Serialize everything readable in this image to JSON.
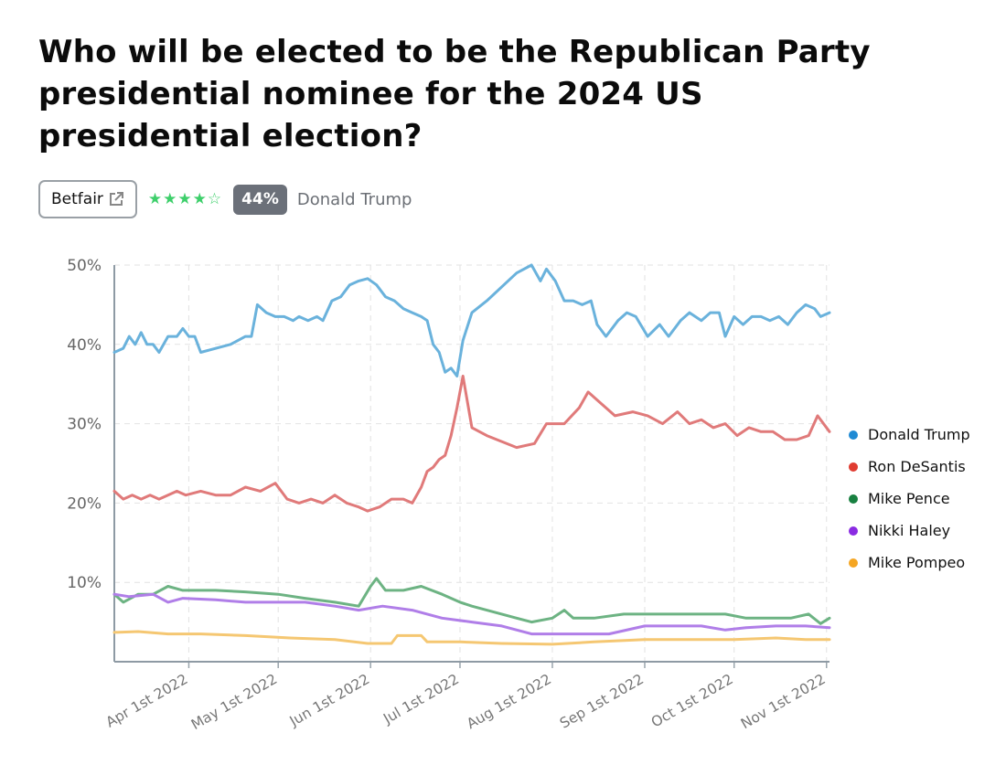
{
  "question": "Who will be elected to be the Republican Party presidential nominee for the 2024 US presidential election?",
  "source": {
    "label": "Betfair",
    "icon": "external-link-icon"
  },
  "rating": {
    "stars": 4,
    "max": 5
  },
  "probability_badge": "44%",
  "leading_outcome": "Donald Trump",
  "chart_data": {
    "type": "line",
    "ylim": [
      0,
      50
    ],
    "ytick_labels": [
      "10%",
      "20%",
      "30%",
      "40%",
      "50%"
    ],
    "ytick_values": [
      10,
      20,
      30,
      40,
      50
    ],
    "xlim": [
      "2022-03-07",
      "2022-11-02"
    ],
    "xtick_labels": [
      "Apr 1st 2022",
      "May 1st 2022",
      "Jun 1st 2022",
      "Jul 1st 2022",
      "Aug 1st 2022",
      "Sep 1st 2022",
      "Oct 1st 2022",
      "Nov 1st 2022"
    ],
    "xtick_dates": [
      "2022-04-01",
      "2022-05-01",
      "2022-06-01",
      "2022-07-01",
      "2022-08-01",
      "2022-09-01",
      "2022-10-01",
      "2022-11-01"
    ],
    "grid": true,
    "legend_position": "right",
    "series": [
      {
        "name": "Donald Trump",
        "legend_color": "#1f8ad4",
        "line_color": "#6ab2dc",
        "points": [
          [
            "2022-03-07",
            39.0
          ],
          [
            "2022-03-10",
            39.5
          ],
          [
            "2022-03-12",
            41.0
          ],
          [
            "2022-03-14",
            40.0
          ],
          [
            "2022-03-16",
            41.5
          ],
          [
            "2022-03-18",
            40.0
          ],
          [
            "2022-03-20",
            40.0
          ],
          [
            "2022-03-22",
            39.0
          ],
          [
            "2022-03-25",
            41.0
          ],
          [
            "2022-03-28",
            41.0
          ],
          [
            "2022-03-30",
            42.0
          ],
          [
            "2022-04-01",
            41.0
          ],
          [
            "2022-04-03",
            41.0
          ],
          [
            "2022-04-05",
            39.0
          ],
          [
            "2022-04-15",
            40.0
          ],
          [
            "2022-04-20",
            41.0
          ],
          [
            "2022-04-22",
            41.0
          ],
          [
            "2022-04-24",
            45.0
          ],
          [
            "2022-04-27",
            44.0
          ],
          [
            "2022-04-30",
            43.5
          ],
          [
            "2022-05-03",
            43.5
          ],
          [
            "2022-05-06",
            43.0
          ],
          [
            "2022-05-08",
            43.5
          ],
          [
            "2022-05-11",
            43.0
          ],
          [
            "2022-05-14",
            43.5
          ],
          [
            "2022-05-16",
            43.0
          ],
          [
            "2022-05-19",
            45.5
          ],
          [
            "2022-05-22",
            46.0
          ],
          [
            "2022-05-25",
            47.5
          ],
          [
            "2022-05-28",
            48.0
          ],
          [
            "2022-05-31",
            48.3
          ],
          [
            "2022-06-03",
            47.5
          ],
          [
            "2022-06-06",
            46.0
          ],
          [
            "2022-06-09",
            45.5
          ],
          [
            "2022-06-12",
            44.5
          ],
          [
            "2022-06-15",
            44.0
          ],
          [
            "2022-06-18",
            43.5
          ],
          [
            "2022-06-20",
            43.0
          ],
          [
            "2022-06-22",
            40.0
          ],
          [
            "2022-06-24",
            39.0
          ],
          [
            "2022-06-26",
            36.5
          ],
          [
            "2022-06-28",
            37.0
          ],
          [
            "2022-06-30",
            36.0
          ],
          [
            "2022-07-02",
            40.5
          ],
          [
            "2022-07-05",
            44.0
          ],
          [
            "2022-07-10",
            45.5
          ],
          [
            "2022-07-20",
            49.0
          ],
          [
            "2022-07-25",
            50.0
          ],
          [
            "2022-07-28",
            48.0
          ],
          [
            "2022-07-30",
            49.5
          ],
          [
            "2022-08-02",
            48.0
          ],
          [
            "2022-08-05",
            45.5
          ],
          [
            "2022-08-08",
            45.5
          ],
          [
            "2022-08-11",
            45.0
          ],
          [
            "2022-08-14",
            45.5
          ],
          [
            "2022-08-16",
            42.5
          ],
          [
            "2022-08-19",
            41.0
          ],
          [
            "2022-08-23",
            43.0
          ],
          [
            "2022-08-26",
            44.0
          ],
          [
            "2022-08-29",
            43.5
          ],
          [
            "2022-09-02",
            41.0
          ],
          [
            "2022-09-06",
            42.5
          ],
          [
            "2022-09-09",
            41.0
          ],
          [
            "2022-09-13",
            43.0
          ],
          [
            "2022-09-16",
            44.0
          ],
          [
            "2022-09-20",
            43.0
          ],
          [
            "2022-09-23",
            44.0
          ],
          [
            "2022-09-26",
            44.0
          ],
          [
            "2022-09-28",
            41.0
          ],
          [
            "2022-10-01",
            43.5
          ],
          [
            "2022-10-04",
            42.5
          ],
          [
            "2022-10-07",
            43.5
          ],
          [
            "2022-10-10",
            43.5
          ],
          [
            "2022-10-13",
            43.0
          ],
          [
            "2022-10-16",
            43.5
          ],
          [
            "2022-10-19",
            42.5
          ],
          [
            "2022-10-22",
            44.0
          ],
          [
            "2022-10-25",
            45.0
          ],
          [
            "2022-10-28",
            44.5
          ],
          [
            "2022-10-30",
            43.5
          ],
          [
            "2022-11-02",
            44.0
          ]
        ]
      },
      {
        "name": "Ron DeSantis",
        "legend_color": "#e03c31",
        "line_color": "#e07a7a",
        "points": [
          [
            "2022-03-07",
            21.5
          ],
          [
            "2022-03-10",
            20.5
          ],
          [
            "2022-03-13",
            21.0
          ],
          [
            "2022-03-16",
            20.5
          ],
          [
            "2022-03-19",
            21.0
          ],
          [
            "2022-03-22",
            20.5
          ],
          [
            "2022-03-25",
            21.0
          ],
          [
            "2022-03-28",
            21.5
          ],
          [
            "2022-03-31",
            21.0
          ],
          [
            "2022-04-05",
            21.5
          ],
          [
            "2022-04-10",
            21.0
          ],
          [
            "2022-04-15",
            21.0
          ],
          [
            "2022-04-20",
            22.0
          ],
          [
            "2022-04-25",
            21.5
          ],
          [
            "2022-04-30",
            22.5
          ],
          [
            "2022-05-04",
            20.5
          ],
          [
            "2022-05-08",
            20.0
          ],
          [
            "2022-05-12",
            20.5
          ],
          [
            "2022-05-16",
            20.0
          ],
          [
            "2022-05-20",
            21.0
          ],
          [
            "2022-05-24",
            20.0
          ],
          [
            "2022-05-28",
            19.5
          ],
          [
            "2022-05-31",
            19.0
          ],
          [
            "2022-06-04",
            19.5
          ],
          [
            "2022-06-08",
            20.5
          ],
          [
            "2022-06-12",
            20.5
          ],
          [
            "2022-06-15",
            20.0
          ],
          [
            "2022-06-18",
            22.0
          ],
          [
            "2022-06-20",
            24.0
          ],
          [
            "2022-06-22",
            24.5
          ],
          [
            "2022-06-24",
            25.5
          ],
          [
            "2022-06-26",
            26.0
          ],
          [
            "2022-06-28",
            28.5
          ],
          [
            "2022-06-30",
            32.0
          ],
          [
            "2022-07-02",
            36.0
          ],
          [
            "2022-07-05",
            29.5
          ],
          [
            "2022-07-10",
            28.5
          ],
          [
            "2022-07-20",
            27.0
          ],
          [
            "2022-07-26",
            27.5
          ],
          [
            "2022-07-30",
            30.0
          ],
          [
            "2022-08-05",
            30.0
          ],
          [
            "2022-08-10",
            32.0
          ],
          [
            "2022-08-13",
            34.0
          ],
          [
            "2022-08-16",
            33.0
          ],
          [
            "2022-08-22",
            31.0
          ],
          [
            "2022-08-28",
            31.5
          ],
          [
            "2022-09-02",
            31.0
          ],
          [
            "2022-09-07",
            30.0
          ],
          [
            "2022-09-12",
            31.5
          ],
          [
            "2022-09-16",
            30.0
          ],
          [
            "2022-09-20",
            30.5
          ],
          [
            "2022-09-24",
            29.5
          ],
          [
            "2022-09-28",
            30.0
          ],
          [
            "2022-10-02",
            28.5
          ],
          [
            "2022-10-06",
            29.5
          ],
          [
            "2022-10-10",
            29.0
          ],
          [
            "2022-10-14",
            29.0
          ],
          [
            "2022-10-18",
            28.0
          ],
          [
            "2022-10-22",
            28.0
          ],
          [
            "2022-10-26",
            28.5
          ],
          [
            "2022-10-29",
            31.0
          ],
          [
            "2022-11-02",
            29.0
          ]
        ]
      },
      {
        "name": "Mike Pence",
        "legend_color": "#188040",
        "line_color": "#6db383",
        "points": [
          [
            "2022-03-07",
            8.5
          ],
          [
            "2022-03-10",
            7.5
          ],
          [
            "2022-03-15",
            8.5
          ],
          [
            "2022-03-20",
            8.5
          ],
          [
            "2022-03-25",
            9.5
          ],
          [
            "2022-03-30",
            9.0
          ],
          [
            "2022-04-10",
            9.0
          ],
          [
            "2022-04-20",
            8.8
          ],
          [
            "2022-05-01",
            8.5
          ],
          [
            "2022-05-10",
            8.0
          ],
          [
            "2022-05-20",
            7.5
          ],
          [
            "2022-05-28",
            7.0
          ],
          [
            "2022-06-01",
            9.5
          ],
          [
            "2022-06-03",
            10.5
          ],
          [
            "2022-06-06",
            9.0
          ],
          [
            "2022-06-12",
            9.0
          ],
          [
            "2022-06-18",
            9.5
          ],
          [
            "2022-06-25",
            8.5
          ],
          [
            "2022-07-01",
            7.5
          ],
          [
            "2022-07-05",
            7.0
          ],
          [
            "2022-07-10",
            6.5
          ],
          [
            "2022-07-15",
            6.0
          ],
          [
            "2022-07-20",
            5.5
          ],
          [
            "2022-07-25",
            5.0
          ],
          [
            "2022-08-01",
            5.5
          ],
          [
            "2022-08-05",
            6.5
          ],
          [
            "2022-08-08",
            5.5
          ],
          [
            "2022-08-15",
            5.5
          ],
          [
            "2022-08-25",
            6.0
          ],
          [
            "2022-09-01",
            6.0
          ],
          [
            "2022-09-10",
            6.0
          ],
          [
            "2022-09-20",
            6.0
          ],
          [
            "2022-09-28",
            6.0
          ],
          [
            "2022-10-05",
            5.5
          ],
          [
            "2022-10-12",
            5.5
          ],
          [
            "2022-10-20",
            5.5
          ],
          [
            "2022-10-26",
            6.0
          ],
          [
            "2022-10-30",
            4.8
          ],
          [
            "2022-11-02",
            5.5
          ]
        ]
      },
      {
        "name": "Nikki Haley",
        "legend_color": "#8a2be2",
        "line_color": "#b07ee8",
        "points": [
          [
            "2022-03-07",
            8.5
          ],
          [
            "2022-03-12",
            8.2
          ],
          [
            "2022-03-20",
            8.5
          ],
          [
            "2022-03-25",
            7.5
          ],
          [
            "2022-03-30",
            8.0
          ],
          [
            "2022-04-10",
            7.8
          ],
          [
            "2022-04-20",
            7.5
          ],
          [
            "2022-04-30",
            7.5
          ],
          [
            "2022-05-10",
            7.5
          ],
          [
            "2022-05-20",
            7.0
          ],
          [
            "2022-05-28",
            6.5
          ],
          [
            "2022-06-05",
            7.0
          ],
          [
            "2022-06-15",
            6.5
          ],
          [
            "2022-06-25",
            5.5
          ],
          [
            "2022-07-05",
            5.0
          ],
          [
            "2022-07-15",
            4.5
          ],
          [
            "2022-07-25",
            3.5
          ],
          [
            "2022-08-01",
            3.5
          ],
          [
            "2022-08-10",
            3.5
          ],
          [
            "2022-08-20",
            3.5
          ],
          [
            "2022-09-01",
            4.5
          ],
          [
            "2022-09-10",
            4.5
          ],
          [
            "2022-09-20",
            4.5
          ],
          [
            "2022-09-28",
            4.0
          ],
          [
            "2022-10-05",
            4.3
          ],
          [
            "2022-10-15",
            4.5
          ],
          [
            "2022-10-25",
            4.5
          ],
          [
            "2022-11-02",
            4.3
          ]
        ]
      },
      {
        "name": "Mike Pompeo",
        "legend_color": "#f5a623",
        "line_color": "#f5c772",
        "points": [
          [
            "2022-03-07",
            3.7
          ],
          [
            "2022-03-15",
            3.8
          ],
          [
            "2022-03-25",
            3.5
          ],
          [
            "2022-04-05",
            3.5
          ],
          [
            "2022-04-20",
            3.3
          ],
          [
            "2022-05-05",
            3.0
          ],
          [
            "2022-05-20",
            2.8
          ],
          [
            "2022-05-31",
            2.3
          ],
          [
            "2022-06-08",
            2.3
          ],
          [
            "2022-06-10",
            3.3
          ],
          [
            "2022-06-18",
            3.3
          ],
          [
            "2022-06-20",
            2.5
          ],
          [
            "2022-07-01",
            2.5
          ],
          [
            "2022-07-15",
            2.3
          ],
          [
            "2022-08-01",
            2.2
          ],
          [
            "2022-08-15",
            2.5
          ],
          [
            "2022-09-01",
            2.8
          ],
          [
            "2022-09-15",
            2.8
          ],
          [
            "2022-10-01",
            2.8
          ],
          [
            "2022-10-15",
            3.0
          ],
          [
            "2022-10-25",
            2.8
          ],
          [
            "2022-11-02",
            2.8
          ]
        ]
      }
    ]
  }
}
